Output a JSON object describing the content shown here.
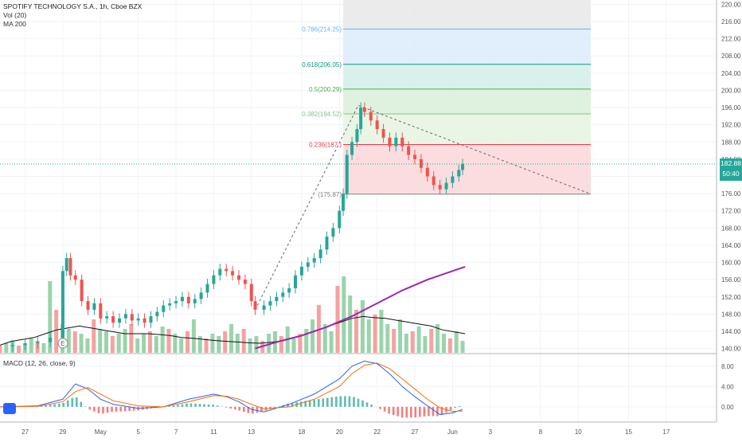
{
  "legend": {
    "symbol_line": "SPOTIFY TECHNOLOGY S.A., 1h, Cboe BZX",
    "vol_line": "Vol (20)",
    "ma_line": "MA 200",
    "macd_line": "MACD (12, 26, close, 9)"
  },
  "price_badge": {
    "price": "182.88",
    "countdown": "50:40"
  },
  "chart_data": [
    {
      "type": "candlestick",
      "title": "SPOTIFY TECHNOLOGY S.A., 1h, Cboe BZX",
      "y_ticks": [
        "220.00",
        "216.00",
        "212.00",
        "208.00",
        "204.00",
        "200.00",
        "196.00",
        "192.00",
        "188.00",
        "184.00",
        "180.00",
        "176.00",
        "172.00",
        "168.00",
        "164.00",
        "160.00",
        "156.00",
        "152.00",
        "148.00",
        "144.00",
        "140.00"
      ],
      "ylim": [
        139,
        221
      ],
      "x_tick_labels": [
        "27",
        "29",
        "May",
        "5",
        "7",
        "11",
        "13",
        "18",
        "20",
        "22",
        "27",
        "Jun",
        "3",
        "8",
        "10",
        "15",
        "17"
      ],
      "x_tick_positions": [
        -3,
        0,
        3,
        6,
        9,
        12,
        15,
        19,
        22,
        25,
        28,
        31,
        34,
        38,
        41,
        45,
        48
      ],
      "xlim": [
        -5,
        52
      ],
      "last_price": 182.88,
      "price_path": [
        [
          -5,
          140.5
        ],
        [
          -4,
          140.8
        ],
        [
          -3,
          141.2
        ],
        [
          -2,
          141.5
        ],
        [
          -1,
          142.5
        ],
        [
          0,
          158
        ],
        [
          0.3,
          161
        ],
        [
          0.6,
          157
        ],
        [
          1,
          156
        ],
        [
          1.5,
          151
        ],
        [
          2,
          149
        ],
        [
          2.5,
          150.5
        ],
        [
          3,
          147
        ],
        [
          3.5,
          147.5
        ],
        [
          4,
          146
        ],
        [
          4.5,
          147
        ],
        [
          5,
          148
        ],
        [
          5.5,
          146.5
        ],
        [
          6,
          147
        ],
        [
          6.5,
          146
        ],
        [
          7,
          147.5
        ],
        [
          7.5,
          148.5
        ],
        [
          8,
          150
        ],
        [
          8.5,
          150.5
        ],
        [
          9,
          151
        ],
        [
          9.5,
          152
        ],
        [
          10,
          150.5
        ],
        [
          10.5,
          151.5
        ],
        [
          11,
          153
        ],
        [
          11.5,
          155
        ],
        [
          12,
          157
        ],
        [
          12.5,
          158.5
        ],
        [
          13,
          158
        ],
        [
          13.5,
          157
        ],
        [
          14,
          156
        ],
        [
          14.5,
          155
        ],
        [
          15,
          151
        ],
        [
          15.3,
          149
        ],
        [
          16,
          150
        ],
        [
          16.5,
          151
        ],
        [
          17,
          152
        ],
        [
          17.5,
          153
        ],
        [
          18,
          154
        ],
        [
          18.5,
          157
        ],
        [
          19,
          159
        ],
        [
          19.5,
          160
        ],
        [
          20,
          161
        ],
        [
          20.5,
          163
        ],
        [
          21,
          166
        ],
        [
          21.5,
          168
        ],
        [
          22,
          172
        ],
        [
          22.3,
          176
        ],
        [
          22.6,
          185
        ],
        [
          23,
          188
        ],
        [
          23.4,
          191
        ],
        [
          23.7,
          196
        ],
        [
          24,
          195
        ],
        [
          24.5,
          193
        ],
        [
          25,
          191
        ],
        [
          25.5,
          189
        ],
        [
          26,
          187
        ],
        [
          26.5,
          189
        ],
        [
          27,
          187
        ],
        [
          27.5,
          185
        ],
        [
          28,
          184
        ],
        [
          28.5,
          182
        ],
        [
          29,
          180
        ],
        [
          29.5,
          178
        ],
        [
          30,
          177
        ],
        [
          30.5,
          178.5
        ],
        [
          31,
          180
        ],
        [
          31.5,
          181.5
        ],
        [
          31.8,
          182.9
        ]
      ],
      "fibonacci": [
        {
          "ratio": "0.786(214.25)",
          "price": 214.25,
          "color": "#64b5f6"
        },
        {
          "ratio": "0.618(206.05)",
          "price": 206.05,
          "color": "#089981"
        },
        {
          "ratio": "0.5(200.29)",
          "price": 200.29,
          "color": "#4caf50"
        },
        {
          "ratio": "0.382(194.52)",
          "price": 194.52,
          "color": "#81c784"
        },
        {
          "ratio": "0.236(187.)",
          "price": 187.4,
          "color": "#f23645"
        },
        {
          "ratio": "(175.87)",
          "price": 175.87,
          "color": "#808080"
        }
      ],
      "fib_x_range": [
        22.3,
        42
      ],
      "trendline_dashed": [
        [
          15.3,
          149
        ],
        [
          23.5,
          196.5
        ],
        [
          42,
          175.9
        ]
      ],
      "ma200": [
        [
          15.3,
          140
        ],
        [
          17,
          141.5
        ],
        [
          19,
          143
        ],
        [
          21,
          145
        ],
        [
          23,
          147.5
        ],
        [
          25,
          150.5
        ],
        [
          27,
          153.5
        ],
        [
          29,
          156
        ],
        [
          31,
          158
        ],
        [
          32,
          159
        ]
      ],
      "volume": [
        3,
        4,
        5,
        3,
        4,
        6,
        5,
        4,
        30,
        18,
        12,
        10,
        9,
        8,
        6,
        14,
        10,
        9,
        7,
        8,
        10,
        12,
        6,
        8,
        9,
        7,
        11,
        10,
        8,
        6,
        9,
        14,
        7,
        6,
        8,
        7,
        9,
        12,
        8,
        10,
        6,
        7,
        5,
        8,
        9,
        7,
        11,
        6,
        8,
        10,
        14,
        20,
        12,
        9,
        28,
        32,
        24,
        18,
        22,
        14,
        16,
        18,
        12,
        10,
        14,
        8,
        9,
        11,
        7,
        10,
        12,
        8,
        6,
        9,
        5
      ],
      "vol_ma": [
        2,
        3,
        3.5,
        4,
        5,
        6,
        6.5,
        7,
        6.5,
        6,
        5.5,
        5,
        5,
        5,
        4.8,
        4.5,
        4,
        3.8,
        3.5,
        3.2,
        3,
        2.8,
        2.6,
        2.5,
        2.8,
        3.2,
        4,
        5,
        6,
        7,
        8,
        9,
        9.5,
        9.2,
        9,
        8.5,
        8,
        7.5,
        7,
        6,
        5.5,
        5
      ],
      "vol_ma_x_start": 0,
      "vol_ma_x_end": 32
    },
    {
      "type": "line",
      "title": "MACD (12, 26, close, 9)",
      "y_ticks": [
        "8.00",
        "4.00",
        "0.00"
      ],
      "ylim": [
        -3,
        10
      ],
      "series": [
        {
          "color": "#2962ff",
          "points": [
            [
              -5,
              0
            ],
            [
              -2,
              0.2
            ],
            [
              0,
              1.5
            ],
            [
              1,
              4.5
            ],
            [
              2,
              3.5
            ],
            [
              3,
              1.5
            ],
            [
              4,
              0.5
            ],
            [
              6,
              -0.3
            ],
            [
              8,
              0
            ],
            [
              10,
              1.5
            ],
            [
              12,
              2.5
            ],
            [
              13,
              2
            ],
            [
              14,
              1
            ],
            [
              15,
              -0.5
            ],
            [
              16,
              -1
            ],
            [
              18,
              0.5
            ],
            [
              20,
              2.5
            ],
            [
              22,
              5.5
            ],
            [
              23,
              8
            ],
            [
              24,
              9
            ],
            [
              25,
              8.5
            ],
            [
              26,
              6.5
            ],
            [
              27,
              4
            ],
            [
              28,
              2
            ],
            [
              29,
              0.2
            ],
            [
              30,
              -1.5
            ],
            [
              31,
              -1.2
            ],
            [
              31.8,
              -0.5
            ]
          ]
        },
        {
          "color": "#ff6d00",
          "points": [
            [
              -5,
              0
            ],
            [
              -2,
              0.1
            ],
            [
              0,
              1
            ],
            [
              1,
              3
            ],
            [
              2,
              3.8
            ],
            [
              3,
              2.5
            ],
            [
              4,
              1.2
            ],
            [
              6,
              0.2
            ],
            [
              8,
              0
            ],
            [
              10,
              1
            ],
            [
              12,
              2.2
            ],
            [
              13,
              2.1
            ],
            [
              14,
              1.5
            ],
            [
              15,
              0.5
            ],
            [
              16,
              -0.4
            ],
            [
              18,
              0
            ],
            [
              20,
              1.5
            ],
            [
              22,
              4
            ],
            [
              23,
              6.5
            ],
            [
              24,
              8.2
            ],
            [
              25,
              8.6
            ],
            [
              26,
              7.5
            ],
            [
              27,
              5.5
            ],
            [
              28,
              3.5
            ],
            [
              29,
              1.5
            ],
            [
              30,
              -0.2
            ],
            [
              31,
              -0.9
            ],
            [
              31.8,
              -0.8
            ]
          ]
        }
      ]
    }
  ]
}
